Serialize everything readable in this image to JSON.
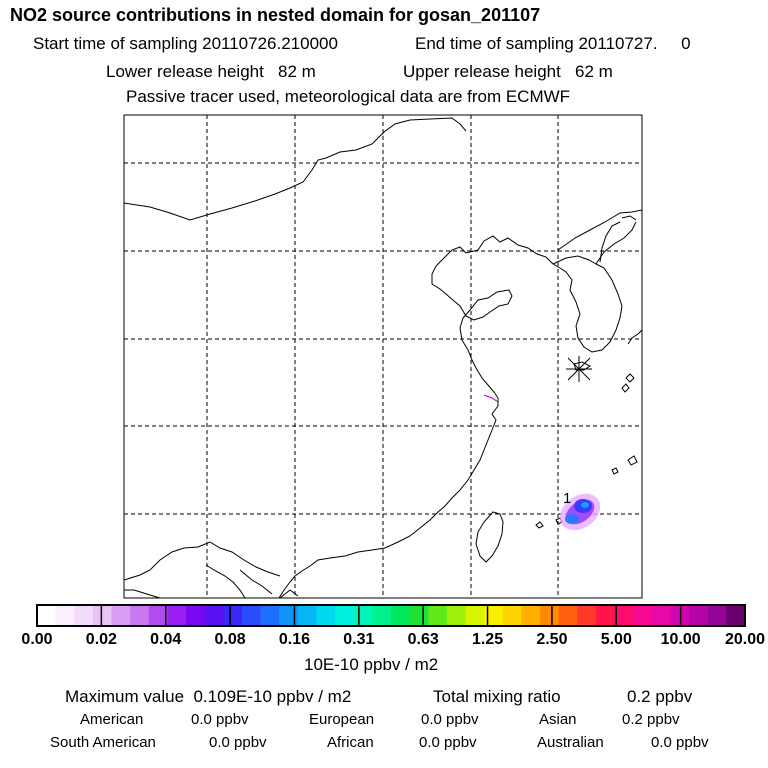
{
  "header": {
    "title": "NO2 source contributions in nested domain for gosan_201107",
    "start_label": "Start time of sampling 20110726.210000",
    "end_label": "End time of sampling 20110727.     0",
    "lower_release": "Lower release height   82 m",
    "upper_release": "Upper release height   62 m",
    "tracer_note": "Passive tracer used, meteorological data are from ECMWF"
  },
  "map": {
    "receptor_marker": "*",
    "source_label": "1",
    "colors": {
      "coast": "#000000",
      "grid": "#000000",
      "plume_inner": "#3a3aff",
      "plume_outer": "#d46bff"
    }
  },
  "colorbar": {
    "unit": "10E-10 ppbv / m2",
    "labels": [
      "0.00",
      "0.02",
      "0.04",
      "0.08",
      "0.16",
      "0.31",
      "0.63",
      "1.25",
      "2.50",
      "5.00",
      "10.00",
      "20.00"
    ],
    "colors": [
      "#ffffff",
      "#fbeefe",
      "#f4dcfb",
      "#e9c2f8",
      "#d99df5",
      "#c878f2",
      "#b24cf0",
      "#9a1ff0",
      "#7a08f2",
      "#5a10f5",
      "#3a28f8",
      "#2a4cfa",
      "#1c70fb",
      "#1094fb",
      "#08b6f8",
      "#00d8f0",
      "#00f0e0",
      "#00f6b8",
      "#00f08a",
      "#00e85c",
      "#20e030",
      "#60e81a",
      "#9cf00c",
      "#d8f400",
      "#f8f000",
      "#ffd400",
      "#ffb000",
      "#ff8a00",
      "#ff6010",
      "#ff3a2a",
      "#ff1648",
      "#ff0c70",
      "#f80a94",
      "#e808a8",
      "#d006b0",
      "#b404a8",
      "#940498",
      "#6a0070"
    ]
  },
  "stats": {
    "max_value": "Maximum value  0.109E-10 ppbv / m2",
    "total_label": "Total mixing ratio",
    "total_value": "0.2 ppbv",
    "regions": [
      {
        "name": "American",
        "value": "0.0 ppbv"
      },
      {
        "name": "European",
        "value": "0.0 ppbv"
      },
      {
        "name": "Asian",
        "value": "0.2 ppbv"
      },
      {
        "name": "South American",
        "value": "0.0 ppbv"
      },
      {
        "name": "African",
        "value": "0.0 ppbv"
      },
      {
        "name": "Australian",
        "value": "0.0 ppbv"
      }
    ]
  }
}
